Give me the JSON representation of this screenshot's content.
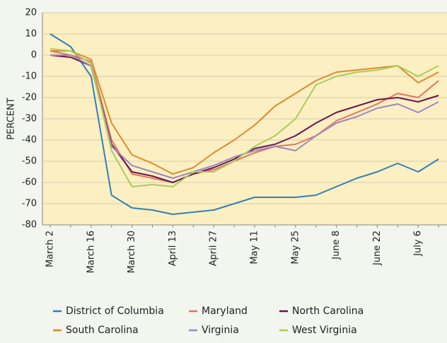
{
  "chart_data": {
    "type": "line",
    "y_label": "PERCENT",
    "categories": [
      "March 2",
      null,
      "March 16",
      null,
      "March 30",
      null,
      "April 13",
      null,
      "April 27",
      null,
      "May 11",
      null,
      "May 25",
      null,
      "June 8",
      null,
      "June 22",
      null,
      "July 6",
      null
    ],
    "ylim": [
      -80,
      20
    ],
    "yticks": [
      -80,
      -70,
      -60,
      -50,
      -40,
      -30,
      -20,
      -10,
      0,
      10,
      20
    ],
    "grid": true,
    "series": [
      {
        "name": "District of Columbia",
        "color": "#2f80ba",
        "values": [
          10,
          4,
          -10,
          -66,
          -72,
          -73,
          -75,
          -74,
          -73,
          -70,
          -67,
          -67,
          -67,
          -66,
          -62,
          -58,
          -55,
          -51,
          -55,
          -49
        ]
      },
      {
        "name": "Maryland",
        "color": "#e2765c",
        "values": [
          2,
          0,
          -3,
          -40,
          -56,
          -58,
          -60,
          -56,
          -54,
          -50,
          -46,
          -43,
          -42,
          -38,
          -31,
          -27,
          -23,
          -18,
          -20,
          -12
        ]
      },
      {
        "name": "North Carolina",
        "color": "#6b1450",
        "values": [
          0,
          -1,
          -5,
          -42,
          -55,
          -57,
          -60,
          -56,
          -53,
          -49,
          -44,
          -42,
          -38,
          -32,
          -27,
          -24,
          -21,
          -20,
          -22,
          -19
        ]
      },
      {
        "name": "South Carolina",
        "color": "#e08a2c",
        "values": [
          2,
          2,
          -2,
          -32,
          -47,
          -51,
          -56,
          -53,
          -46,
          -40,
          -33,
          -24,
          -18,
          -12,
          -8,
          -7,
          -6,
          -5,
          -13,
          -8
        ]
      },
      {
        "name": "Virginia",
        "color": "#9a88c4",
        "values": [
          0,
          0,
          -5,
          -43,
          -52,
          -55,
          -58,
          -55,
          -52,
          -48,
          -45,
          -43,
          -45,
          -38,
          -32,
          -29,
          -25,
          -23,
          -27,
          -22
        ]
      },
      {
        "name": "West Virginia",
        "color": "#a8cd5c",
        "values": [
          3,
          2,
          -4,
          -45,
          -62,
          -61,
          -62,
          -55,
          -55,
          -50,
          -43,
          -38,
          -30,
          -14,
          -10,
          -8,
          -7,
          -5,
          -10,
          -5
        ]
      }
    ]
  }
}
